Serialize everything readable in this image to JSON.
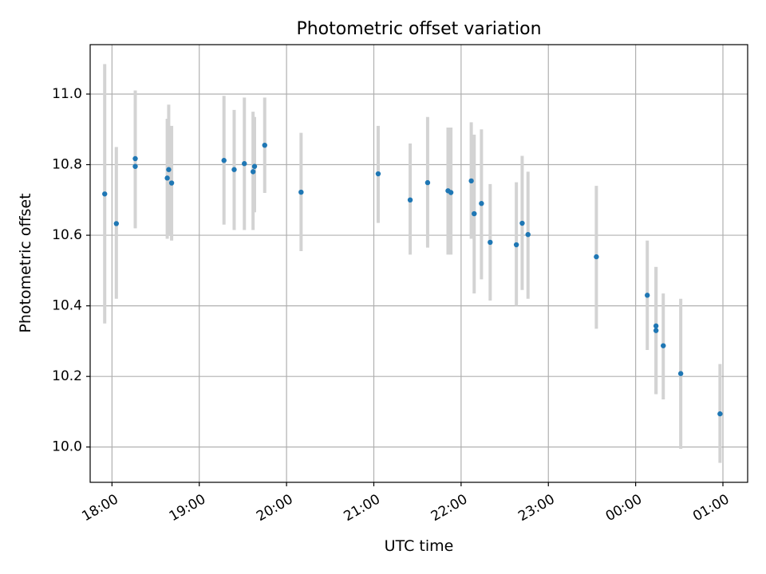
{
  "chart_data": {
    "type": "scatter",
    "title": "Photometric offset variation",
    "xlabel": "UTC time",
    "ylabel": "Photometric offset",
    "x_unit": "UTC time (hours, continuing past midnight)",
    "xlim": [
      "17:45",
      "01:17"
    ],
    "ylim": [
      9.9,
      11.14
    ],
    "x_ticks": [
      "18:00",
      "19:00",
      "20:00",
      "21:00",
      "22:00",
      "23:00",
      "00:00",
      "01:00"
    ],
    "y_ticks": [
      "10.0",
      "10.2",
      "10.4",
      "10.6",
      "10.8",
      "11.0"
    ],
    "grid": true,
    "series": [
      {
        "marker_color": "#1f77b4",
        "errorbar_color": "#d3d3d3",
        "points": [
          {
            "t": "17:55",
            "y": 10.717,
            "lo": 10.35,
            "hi": 11.085
          },
          {
            "t": "18:03",
            "y": 10.633,
            "lo": 10.42,
            "hi": 10.85
          },
          {
            "t": "18:16",
            "y": 10.817,
            "lo": 10.62,
            "hi": 11.01
          },
          {
            "t": "18:16",
            "y": 10.795,
            "lo": 10.62,
            "hi": 10.97
          },
          {
            "t": "18:38",
            "y": 10.762,
            "lo": 10.59,
            "hi": 10.93
          },
          {
            "t": "18:39",
            "y": 10.786,
            "lo": 10.6,
            "hi": 10.97
          },
          {
            "t": "18:41",
            "y": 10.748,
            "lo": 10.585,
            "hi": 10.91
          },
          {
            "t": "19:17",
            "y": 10.812,
            "lo": 10.63,
            "hi": 10.995
          },
          {
            "t": "19:24",
            "y": 10.786,
            "lo": 10.615,
            "hi": 10.955
          },
          {
            "t": "19:31",
            "y": 10.803,
            "lo": 10.615,
            "hi": 10.99
          },
          {
            "t": "19:37",
            "y": 10.78,
            "lo": 10.615,
            "hi": 10.95
          },
          {
            "t": "19:38",
            "y": 10.795,
            "lo": 10.665,
            "hi": 10.935
          },
          {
            "t": "19:45",
            "y": 10.855,
            "lo": 10.72,
            "hi": 10.99
          },
          {
            "t": "20:10",
            "y": 10.722,
            "lo": 10.555,
            "hi": 10.89
          },
          {
            "t": "21:03",
            "y": 10.774,
            "lo": 10.635,
            "hi": 10.91
          },
          {
            "t": "21:25",
            "y": 10.7,
            "lo": 10.545,
            "hi": 10.86
          },
          {
            "t": "21:37",
            "y": 10.749,
            "lo": 10.565,
            "hi": 10.935
          },
          {
            "t": "21:51",
            "y": 10.726,
            "lo": 10.545,
            "hi": 10.905
          },
          {
            "t": "21:53",
            "y": 10.721,
            "lo": 10.545,
            "hi": 10.905
          },
          {
            "t": "22:07",
            "y": 10.754,
            "lo": 10.59,
            "hi": 10.92
          },
          {
            "t": "22:09",
            "y": 10.661,
            "lo": 10.435,
            "hi": 10.885
          },
          {
            "t": "22:14",
            "y": 10.69,
            "lo": 10.475,
            "hi": 10.9
          },
          {
            "t": "22:20",
            "y": 10.58,
            "lo": 10.415,
            "hi": 10.745
          },
          {
            "t": "22:38",
            "y": 10.573,
            "lo": 10.4,
            "hi": 10.75
          },
          {
            "t": "22:42",
            "y": 10.634,
            "lo": 10.445,
            "hi": 10.825
          },
          {
            "t": "22:46",
            "y": 10.602,
            "lo": 10.42,
            "hi": 10.78
          },
          {
            "t": "23:33",
            "y": 10.539,
            "lo": 10.335,
            "hi": 10.74
          },
          {
            "t": "00:08",
            "y": 10.43,
            "lo": 10.275,
            "hi": 10.585
          },
          {
            "t": "00:14",
            "y": 10.343,
            "lo": 10.15,
            "hi": 10.51
          },
          {
            "t": "00:14",
            "y": 10.33,
            "lo": 10.15,
            "hi": 10.51
          },
          {
            "t": "00:19",
            "y": 10.287,
            "lo": 10.135,
            "hi": 10.435
          },
          {
            "t": "00:31",
            "y": 10.208,
            "lo": 9.995,
            "hi": 10.42
          },
          {
            "t": "00:58",
            "y": 10.094,
            "lo": 9.955,
            "hi": 10.235
          }
        ]
      }
    ]
  }
}
